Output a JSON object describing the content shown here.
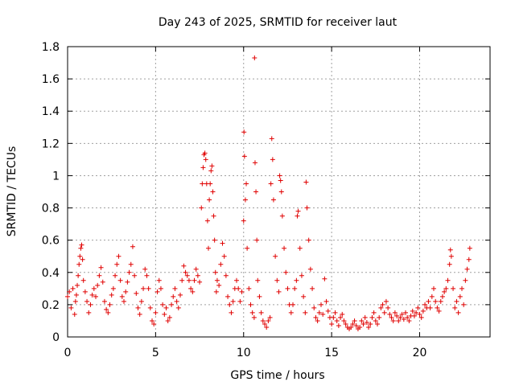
{
  "chart_data": {
    "type": "scatter",
    "title": "Day 243 of 2025, SRMTID for receiver laut",
    "xlabel": "GPS time / hours",
    "ylabel": "SRMTID / TECUs",
    "xlim": [
      0,
      24
    ],
    "ylim": [
      0,
      1.8
    ],
    "xticks": [
      0,
      5,
      10,
      15,
      20
    ],
    "yticks": [
      0,
      0.2,
      0.4,
      0.6,
      0.8,
      1.0,
      1.2,
      1.4,
      1.6,
      1.8
    ],
    "ytick_labels": [
      "0",
      "0.2",
      "0.4",
      "0.6",
      "0.8",
      "1",
      "1.2",
      "1.4",
      "1.6",
      "1.8"
    ],
    "grid": true,
    "marker": "+",
    "color": "#e00000",
    "series": [
      {
        "name": "SRMTID",
        "points": [
          [
            0.0,
            0.25
          ],
          [
            0.1,
            0.28
          ],
          [
            0.2,
            0.18
          ],
          [
            0.3,
            0.3
          ],
          [
            0.4,
            0.14
          ],
          [
            0.45,
            0.22
          ],
          [
            0.5,
            0.26
          ],
          [
            0.55,
            0.32
          ],
          [
            0.6,
            0.38
          ],
          [
            0.65,
            0.45
          ],
          [
            0.7,
            0.5
          ],
          [
            0.75,
            0.55
          ],
          [
            0.8,
            0.57
          ],
          [
            0.85,
            0.48
          ],
          [
            0.9,
            0.35
          ],
          [
            1.0,
            0.28
          ],
          [
            1.1,
            0.22
          ],
          [
            1.2,
            0.15
          ],
          [
            1.3,
            0.2
          ],
          [
            1.4,
            0.26
          ],
          [
            1.5,
            0.3
          ],
          [
            1.6,
            0.25
          ],
          [
            1.7,
            0.32
          ],
          [
            1.8,
            0.38
          ],
          [
            1.9,
            0.43
          ],
          [
            2.0,
            0.34
          ],
          [
            2.1,
            0.22
          ],
          [
            2.2,
            0.17
          ],
          [
            2.3,
            0.15
          ],
          [
            2.4,
            0.2
          ],
          [
            2.5,
            0.26
          ],
          [
            2.6,
            0.3
          ],
          [
            2.7,
            0.38
          ],
          [
            2.8,
            0.45
          ],
          [
            2.9,
            0.5
          ],
          [
            3.0,
            0.35
          ],
          [
            3.1,
            0.25
          ],
          [
            3.2,
            0.22
          ],
          [
            3.3,
            0.28
          ],
          [
            3.4,
            0.34
          ],
          [
            3.5,
            0.4
          ],
          [
            3.6,
            0.45
          ],
          [
            3.7,
            0.56
          ],
          [
            3.8,
            0.38
          ],
          [
            3.9,
            0.27
          ],
          [
            4.0,
            0.18
          ],
          [
            4.1,
            0.14
          ],
          [
            4.2,
            0.22
          ],
          [
            4.3,
            0.3
          ],
          [
            4.4,
            0.42
          ],
          [
            4.5,
            0.38
          ],
          [
            4.6,
            0.3
          ],
          [
            4.7,
            0.18
          ],
          [
            4.8,
            0.1
          ],
          [
            4.9,
            0.08
          ],
          [
            5.0,
            0.15
          ],
          [
            5.1,
            0.28
          ],
          [
            5.2,
            0.35
          ],
          [
            5.3,
            0.3
          ],
          [
            5.4,
            0.2
          ],
          [
            5.5,
            0.14
          ],
          [
            5.6,
            0.18
          ],
          [
            5.7,
            0.1
          ],
          [
            5.8,
            0.12
          ],
          [
            5.9,
            0.2
          ],
          [
            6.0,
            0.25
          ],
          [
            6.1,
            0.3
          ],
          [
            6.2,
            0.22
          ],
          [
            6.3,
            0.18
          ],
          [
            6.4,
            0.26
          ],
          [
            6.5,
            0.35
          ],
          [
            6.6,
            0.44
          ],
          [
            6.7,
            0.4
          ],
          [
            6.8,
            0.38
          ],
          [
            6.9,
            0.35
          ],
          [
            7.0,
            0.3
          ],
          [
            7.1,
            0.28
          ],
          [
            7.2,
            0.35
          ],
          [
            7.3,
            0.42
          ],
          [
            7.4,
            0.38
          ],
          [
            7.5,
            0.34
          ],
          [
            7.6,
            0.8
          ],
          [
            7.65,
            0.95
          ],
          [
            7.7,
            1.05
          ],
          [
            7.75,
            1.13
          ],
          [
            7.8,
            1.14
          ],
          [
            7.85,
            1.1
          ],
          [
            7.9,
            0.95
          ],
          [
            7.95,
            0.72
          ],
          [
            8.0,
            0.55
          ],
          [
            8.05,
            0.85
          ],
          [
            8.1,
            0.95
          ],
          [
            8.15,
            1.03
          ],
          [
            8.2,
            1.06
          ],
          [
            8.25,
            0.9
          ],
          [
            8.3,
            0.75
          ],
          [
            8.35,
            0.6
          ],
          [
            8.4,
            0.4
          ],
          [
            8.45,
            0.28
          ],
          [
            8.5,
            0.35
          ],
          [
            8.6,
            0.32
          ],
          [
            8.7,
            0.45
          ],
          [
            8.8,
            0.58
          ],
          [
            8.9,
            0.5
          ],
          [
            9.0,
            0.38
          ],
          [
            9.1,
            0.25
          ],
          [
            9.2,
            0.2
          ],
          [
            9.3,
            0.15
          ],
          [
            9.4,
            0.22
          ],
          [
            9.5,
            0.3
          ],
          [
            9.6,
            0.35
          ],
          [
            9.7,
            0.3
          ],
          [
            9.8,
            0.22
          ],
          [
            9.9,
            0.28
          ],
          [
            10.0,
            0.72
          ],
          [
            10.02,
            1.27
          ],
          [
            10.05,
            1.12
          ],
          [
            10.1,
            0.85
          ],
          [
            10.15,
            0.95
          ],
          [
            10.2,
            0.55
          ],
          [
            10.3,
            0.3
          ],
          [
            10.4,
            0.2
          ],
          [
            10.5,
            0.15
          ],
          [
            10.6,
            0.12
          ],
          [
            10.62,
            1.73
          ],
          [
            10.65,
            1.08
          ],
          [
            10.7,
            0.9
          ],
          [
            10.75,
            0.6
          ],
          [
            10.8,
            0.35
          ],
          [
            10.9,
            0.25
          ],
          [
            11.0,
            0.15
          ],
          [
            11.1,
            0.1
          ],
          [
            11.2,
            0.08
          ],
          [
            11.3,
            0.06
          ],
          [
            11.4,
            0.1
          ],
          [
            11.5,
            0.12
          ],
          [
            11.55,
            0.95
          ],
          [
            11.6,
            1.23
          ],
          [
            11.65,
            1.1
          ],
          [
            11.7,
            0.85
          ],
          [
            11.8,
            0.5
          ],
          [
            11.9,
            0.35
          ],
          [
            12.0,
            0.28
          ],
          [
            12.05,
            1.0
          ],
          [
            12.1,
            0.97
          ],
          [
            12.15,
            0.9
          ],
          [
            12.2,
            0.75
          ],
          [
            12.3,
            0.55
          ],
          [
            12.4,
            0.4
          ],
          [
            12.5,
            0.3
          ],
          [
            12.6,
            0.2
          ],
          [
            12.7,
            0.15
          ],
          [
            12.8,
            0.2
          ],
          [
            12.9,
            0.3
          ],
          [
            13.0,
            0.35
          ],
          [
            13.05,
            0.75
          ],
          [
            13.1,
            0.78
          ],
          [
            13.2,
            0.55
          ],
          [
            13.3,
            0.38
          ],
          [
            13.4,
            0.25
          ],
          [
            13.5,
            0.15
          ],
          [
            13.55,
            0.96
          ],
          [
            13.6,
            0.8
          ],
          [
            13.7,
            0.6
          ],
          [
            13.8,
            0.42
          ],
          [
            13.9,
            0.3
          ],
          [
            14.0,
            0.18
          ],
          [
            14.1,
            0.12
          ],
          [
            14.2,
            0.1
          ],
          [
            14.3,
            0.15
          ],
          [
            14.4,
            0.2
          ],
          [
            14.5,
            0.14
          ],
          [
            14.6,
            0.36
          ],
          [
            14.7,
            0.22
          ],
          [
            14.8,
            0.16
          ],
          [
            14.9,
            0.12
          ],
          [
            15.0,
            0.08
          ],
          [
            15.1,
            0.12
          ],
          [
            15.2,
            0.15
          ],
          [
            15.3,
            0.1
          ],
          [
            15.4,
            0.07
          ],
          [
            15.5,
            0.12
          ],
          [
            15.6,
            0.14
          ],
          [
            15.7,
            0.1
          ],
          [
            15.8,
            0.08
          ],
          [
            15.9,
            0.06
          ],
          [
            16.0,
            0.05
          ],
          [
            16.1,
            0.06
          ],
          [
            16.2,
            0.08
          ],
          [
            16.3,
            0.1
          ],
          [
            16.4,
            0.07
          ],
          [
            16.5,
            0.05
          ],
          [
            16.6,
            0.06
          ],
          [
            16.7,
            0.1
          ],
          [
            16.8,
            0.08
          ],
          [
            16.9,
            0.12
          ],
          [
            17.0,
            0.09
          ],
          [
            17.1,
            0.06
          ],
          [
            17.2,
            0.08
          ],
          [
            17.3,
            0.12
          ],
          [
            17.4,
            0.15
          ],
          [
            17.5,
            0.1
          ],
          [
            17.6,
            0.08
          ],
          [
            17.7,
            0.12
          ],
          [
            17.8,
            0.18
          ],
          [
            17.9,
            0.2
          ],
          [
            18.0,
            0.15
          ],
          [
            18.1,
            0.22
          ],
          [
            18.2,
            0.18
          ],
          [
            18.3,
            0.14
          ],
          [
            18.4,
            0.12
          ],
          [
            18.5,
            0.1
          ],
          [
            18.6,
            0.15
          ],
          [
            18.7,
            0.13
          ],
          [
            18.8,
            0.1
          ],
          [
            18.9,
            0.12
          ],
          [
            19.0,
            0.14
          ],
          [
            19.1,
            0.11
          ],
          [
            19.2,
            0.15
          ],
          [
            19.3,
            0.12
          ],
          [
            19.4,
            0.1
          ],
          [
            19.5,
            0.13
          ],
          [
            19.6,
            0.16
          ],
          [
            19.7,
            0.13
          ],
          [
            19.8,
            0.15
          ],
          [
            19.9,
            0.18
          ],
          [
            20.0,
            0.14
          ],
          [
            20.1,
            0.12
          ],
          [
            20.2,
            0.16
          ],
          [
            20.3,
            0.2
          ],
          [
            20.4,
            0.18
          ],
          [
            20.5,
            0.22
          ],
          [
            20.6,
            0.18
          ],
          [
            20.7,
            0.25
          ],
          [
            20.8,
            0.3
          ],
          [
            20.9,
            0.22
          ],
          [
            21.0,
            0.18
          ],
          [
            21.1,
            0.16
          ],
          [
            21.2,
            0.22
          ],
          [
            21.3,
            0.25
          ],
          [
            21.4,
            0.28
          ],
          [
            21.5,
            0.3
          ],
          [
            21.6,
            0.35
          ],
          [
            21.7,
            0.45
          ],
          [
            21.75,
            0.54
          ],
          [
            21.8,
            0.5
          ],
          [
            21.9,
            0.3
          ],
          [
            22.0,
            0.18
          ],
          [
            22.1,
            0.22
          ],
          [
            22.2,
            0.15
          ],
          [
            22.3,
            0.25
          ],
          [
            22.4,
            0.3
          ],
          [
            22.5,
            0.2
          ],
          [
            22.6,
            0.35
          ],
          [
            22.7,
            0.42
          ],
          [
            22.8,
            0.48
          ],
          [
            22.85,
            0.55
          ]
        ]
      }
    ]
  }
}
